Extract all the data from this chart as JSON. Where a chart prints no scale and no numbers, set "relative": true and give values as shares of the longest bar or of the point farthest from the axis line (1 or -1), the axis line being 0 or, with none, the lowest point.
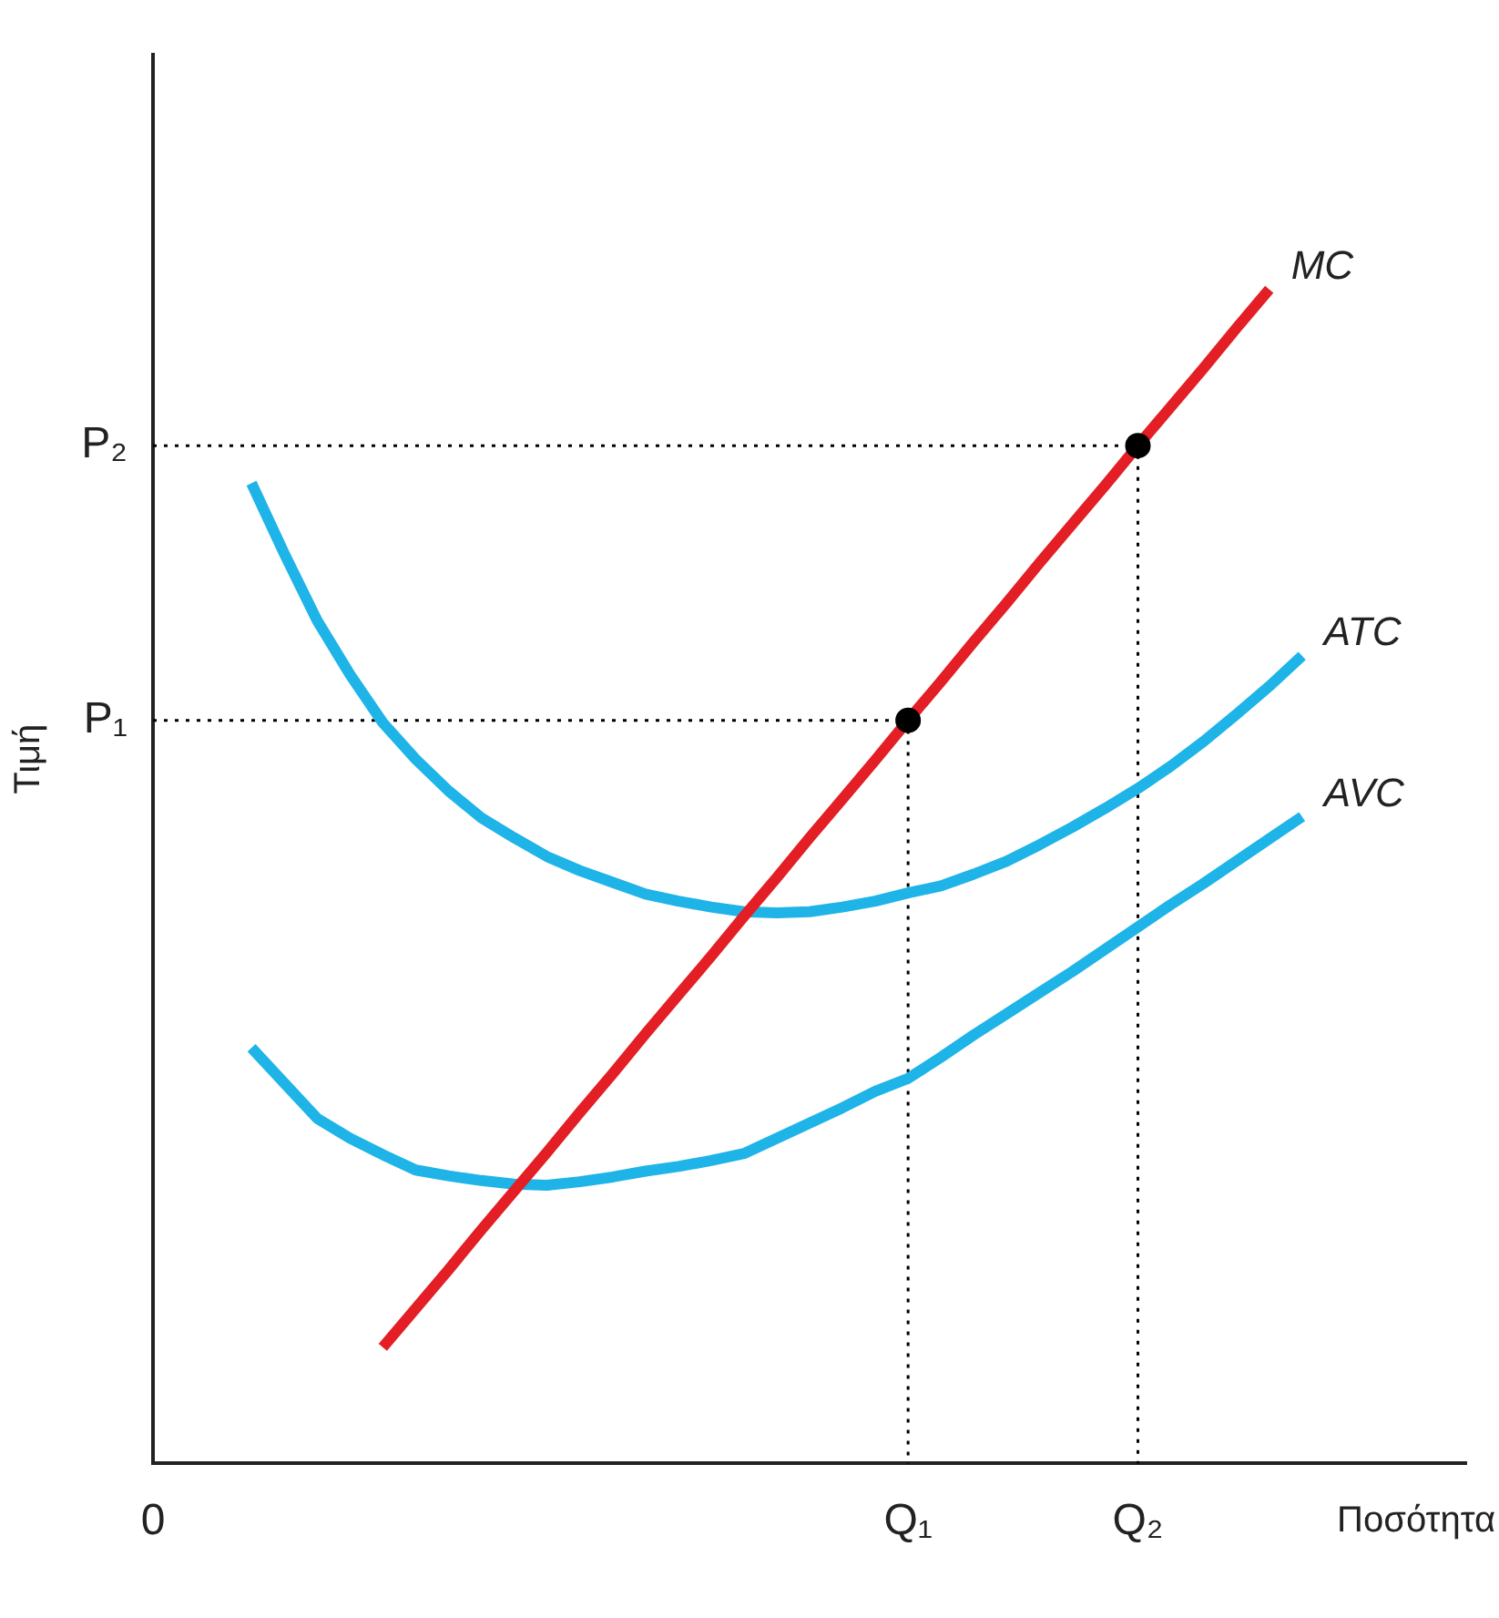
{
  "chart_data": {
    "type": "line",
    "relative": true,
    "xlabel": "Ποσότητα",
    "ylabel": "Τιμή",
    "categories": [
      "0",
      null,
      null,
      null,
      null,
      null,
      null,
      null,
      null,
      null,
      null,
      null,
      null,
      null,
      null,
      null,
      null,
      null,
      null,
      null,
      null,
      null,
      null,
      "Q₁",
      null,
      null,
      null,
      null,
      null,
      null,
      "Q₂",
      null,
      null,
      null,
      null,
      null,
      null,
      null,
      null,
      null,
      null
    ],
    "grid": false,
    "legend": false,
    "line_style": "solid",
    "annotations": [
      "P₁",
      "P₂"
    ],
    "series": [
      {
        "name": "MC",
        "color": "#e31e24",
        "values": [
          null,
          null,
          null,
          null,
          null,
          null,
          null,
          0.099,
          0.132,
          0.165,
          0.199,
          0.232,
          0.265,
          0.299,
          0.332,
          0.366,
          0.399,
          0.432,
          0.466,
          0.499,
          0.533,
          0.566,
          0.599,
          0.633,
          0.666,
          0.7,
          0.733,
          0.767,
          0.8,
          0.833,
          0.867,
          0.9,
          0.933,
          0.967,
          1,
          null,
          null,
          null,
          null,
          null,
          null
        ]
      },
      {
        "name": "ATC",
        "color": "#1eb4e8",
        "values": [
          null,
          null,
          null,
          0.835,
          0.775,
          0.718,
          0.672,
          0.631,
          0.6,
          0.573,
          0.55,
          0.533,
          0.517,
          0.505,
          0.495,
          0.485,
          0.479,
          0.474,
          0.47,
          0.469,
          0.47,
          0.474,
          0.479,
          0.486,
          0.492,
          0.502,
          0.513,
          0.527,
          0.542,
          0.558,
          0.575,
          0.594,
          0.615,
          0.638,
          0.662,
          0.688,
          null,
          null,
          null,
          null,
          null
        ]
      },
      {
        "name": "AVC",
        "color": "#1eb4e8",
        "values": [
          null,
          null,
          null,
          0.354,
          0.324,
          0.294,
          0.277,
          0.263,
          0.25,
          0.245,
          0.241,
          0.238,
          0.237,
          0.24,
          0.244,
          0.249,
          0.253,
          0.258,
          0.264,
          0.277,
          0.29,
          0.303,
          0.317,
          0.328,
          0.346,
          0.365,
          0.383,
          0.401,
          0.419,
          0.438,
          0.457,
          0.476,
          0.494,
          0.513,
          0.532,
          0.551,
          null,
          null,
          null,
          null,
          null
        ]
      },
      {
        "type": "scatter",
        "marker": "circle",
        "color": "#000000",
        "values": [
          null,
          null,
          null,
          null,
          null,
          null,
          null,
          null,
          null,
          null,
          null,
          null,
          null,
          null,
          null,
          null,
          null,
          null,
          null,
          null,
          null,
          null,
          null,
          0.633,
          null,
          null,
          null,
          null,
          null,
          null,
          0.867,
          null,
          null,
          null,
          null,
          null,
          null,
          null,
          null,
          null,
          null
        ]
      }
    ]
  }
}
